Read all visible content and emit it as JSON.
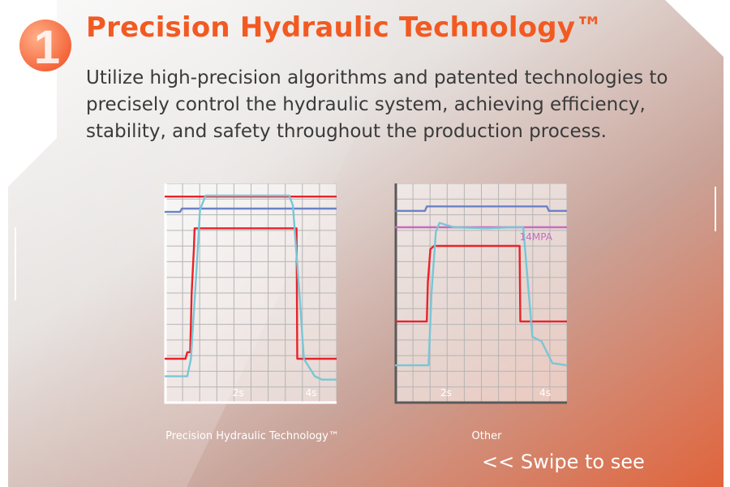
{
  "header": {
    "badge_number": "1",
    "title": "Precision Hydraulic Technology™",
    "description": "Utilize high-precision algorithms and patented technologies to precisely control the hydraulic system, achieving efficiency, stability, and safety throughout the production process."
  },
  "colors": {
    "accent": "#f25a22",
    "red_line": "#e8232a",
    "blue_line": "#6b82c8",
    "cyan_line": "#79c6d6",
    "pressure_line": "#c86bc0"
  },
  "footer": {
    "swipe_text": "<<  Swipe to see"
  },
  "chart_data": [
    {
      "type": "line",
      "caption": "Precision Hydraulic Technology™",
      "xlim": [
        0,
        4.7
      ],
      "ylim": [
        0,
        1
      ],
      "xticks": [
        {
          "value": 2,
          "label": "2s"
        },
        {
          "value": 4,
          "label": "4s"
        }
      ],
      "grid": true,
      "series": [
        {
          "color": "#e8232a",
          "x": [
            0,
            4.7
          ],
          "y": [
            0.94,
            0.94
          ]
        },
        {
          "color": "#6b82c8",
          "x": [
            0,
            0.4,
            0.45,
            4.7
          ],
          "y": [
            0.87,
            0.87,
            0.885,
            0.885
          ]
        },
        {
          "color": "#e8232a",
          "x": [
            0,
            0.55,
            0.6,
            0.68,
            0.72,
            0.78,
            0.8,
            3.6,
            3.62,
            4.7
          ],
          "y": [
            0.2,
            0.2,
            0.23,
            0.23,
            0.5,
            0.7,
            0.795,
            0.795,
            0.2,
            0.2
          ]
        },
        {
          "color": "#79c6d6",
          "x": [
            0,
            0.6,
            0.7,
            0.85,
            0.95,
            1.1,
            3.4,
            3.5,
            3.7,
            3.8,
            4.1,
            4.3,
            4.7
          ],
          "y": [
            0.12,
            0.12,
            0.2,
            0.6,
            0.88,
            0.945,
            0.945,
            0.9,
            0.45,
            0.2,
            0.12,
            0.105,
            0.105
          ]
        }
      ]
    },
    {
      "type": "line",
      "caption": "Other",
      "xlim": [
        0,
        4.7
      ],
      "ylim": [
        0,
        1
      ],
      "xticks": [
        {
          "value": 1.38,
          "label": "2s"
        },
        {
          "value": 4.1,
          "label": "4s"
        }
      ],
      "grid": true,
      "annotations": [
        {
          "text": "14MPA",
          "x": 3.4,
          "y": 0.74
        }
      ],
      "series": [
        {
          "color": "#6b82c8",
          "x": [
            0,
            0.8,
            0.85,
            4.15,
            4.2,
            4.7
          ],
          "y": [
            0.875,
            0.875,
            0.895,
            0.895,
            0.875,
            0.875
          ]
        },
        {
          "color": "#c86bc0",
          "x": [
            0,
            4.7
          ],
          "y": [
            0.8,
            0.8
          ]
        },
        {
          "color": "#e8232a",
          "x": [
            0,
            0.85,
            0.88,
            0.95,
            1.05,
            3.4,
            3.42,
            4.7
          ],
          "y": [
            0.37,
            0.37,
            0.55,
            0.7,
            0.715,
            0.715,
            0.37,
            0.37
          ]
        },
        {
          "color": "#79c6d6",
          "x": [
            0,
            0.9,
            0.98,
            1.1,
            1.2,
            1.3,
            1.6,
            2.5,
            3.2,
            3.5,
            3.6,
            3.75,
            4.0,
            4.3,
            4.7
          ],
          "y": [
            0.17,
            0.17,
            0.5,
            0.78,
            0.82,
            0.815,
            0.8,
            0.795,
            0.8,
            0.8,
            0.6,
            0.3,
            0.28,
            0.18,
            0.17
          ]
        }
      ]
    }
  ]
}
